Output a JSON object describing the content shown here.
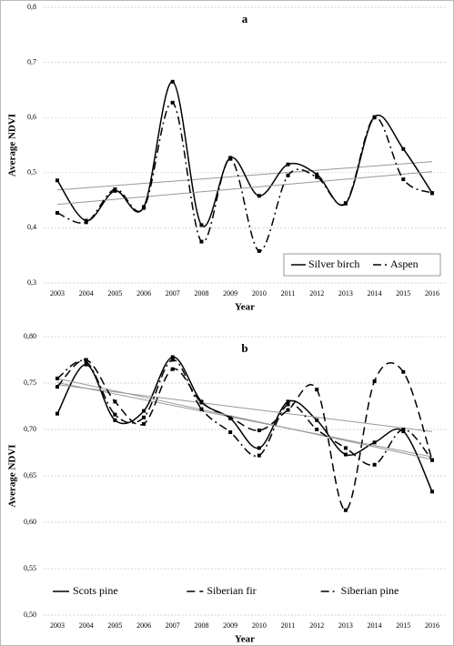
{
  "chart_data": [
    {
      "type": "line",
      "title": "a",
      "ylabel": "Average NDVI",
      "xlabel": "Year",
      "categories": [
        2003,
        2004,
        2005,
        2006,
        2007,
        2008,
        2009,
        2010,
        2011,
        2012,
        2013,
        2014,
        2015,
        2016
      ],
      "series": [
        {
          "name": "Silver birch",
          "color": "#000000",
          "dash": "none",
          "values": [
            0.486,
            0.413,
            0.467,
            0.438,
            0.665,
            0.405,
            0.527,
            0.458,
            0.515,
            0.497,
            0.444,
            0.601,
            0.543,
            0.463
          ]
        },
        {
          "name": "Aspen",
          "color": "#000000",
          "dash": "9,4,2,4",
          "values": [
            0.427,
            0.41,
            0.47,
            0.436,
            0.627,
            0.375,
            0.525,
            0.358,
            0.495,
            0.492,
            0.445,
            0.6,
            0.488,
            0.463
          ]
        }
      ],
      "ylim": [
        0.3,
        0.8
      ],
      "yticks": [
        {
          "value": 0.3,
          "label": "0,3"
        },
        {
          "value": 0.4,
          "label": "0,4"
        },
        {
          "value": 0.5,
          "label": "0,5"
        },
        {
          "value": 0.6,
          "label": "0,6"
        },
        {
          "value": 0.7,
          "label": "0,7"
        },
        {
          "value": 0.8,
          "label": "0,8"
        }
      ],
      "grid": true,
      "trendline": true,
      "legend": "lower right"
    },
    {
      "type": "line",
      "title": "b",
      "ylabel": "Average NDVI",
      "xlabel": "Year",
      "categories": [
        2003,
        2004,
        2005,
        2006,
        2007,
        2008,
        2009,
        2010,
        2011,
        2012,
        2013,
        2014,
        2015,
        2016
      ],
      "series": [
        {
          "name": "Scots pine",
          "color": "#000000",
          "dash": "none",
          "values": [
            0.717,
            0.77,
            0.71,
            0.72,
            0.778,
            0.73,
            0.712,
            0.68,
            0.73,
            0.71,
            0.673,
            0.686,
            0.698,
            0.633
          ]
        },
        {
          "name": "Siberian fir",
          "color": "#000000",
          "dash": "9,5",
          "values": [
            0.746,
            0.775,
            0.73,
            0.706,
            0.765,
            0.729,
            0.713,
            0.699,
            0.721,
            0.743,
            0.613,
            0.752,
            0.762,
            0.667
          ]
        },
        {
          "name": "Siberian pine",
          "color": "#000000",
          "dash": "9,4,2,4",
          "values": [
            0.755,
            0.773,
            0.716,
            0.713,
            0.775,
            0.722,
            0.697,
            0.672,
            0.727,
            0.7,
            0.68,
            0.662,
            0.7,
            0.667
          ]
        }
      ],
      "ylim": [
        0.5,
        0.8
      ],
      "yticks": [
        {
          "value": 0.5,
          "label": "0,50"
        },
        {
          "value": 0.55,
          "label": "0,55"
        },
        {
          "value": 0.6,
          "label": "0,60"
        },
        {
          "value": 0.65,
          "label": "0,65"
        },
        {
          "value": 0.7,
          "label": "0,70"
        },
        {
          "value": 0.75,
          "label": "0,75"
        },
        {
          "value": 0.8,
          "label": "0,80"
        }
      ],
      "grid": true,
      "trendline": true,
      "legend": "lower center"
    }
  ]
}
